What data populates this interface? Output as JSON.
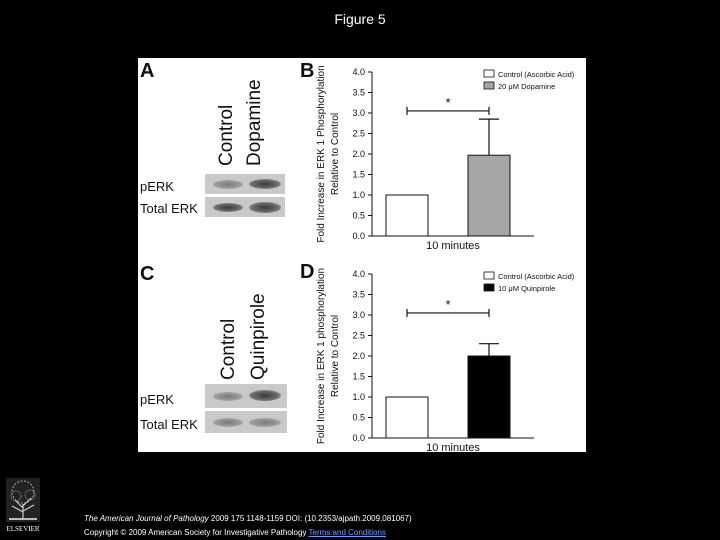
{
  "slide": {
    "title": "Figure 5"
  },
  "panels": {
    "A": {
      "letter": "A",
      "lanes": [
        "Control",
        "Dopamine"
      ],
      "rows": [
        "pERK",
        "Total ERK"
      ]
    },
    "B": {
      "letter": "B",
      "ylabel_line1": "Fold Increase in ERK 1 Phosphorylation",
      "ylabel_line2": "Relative to Control",
      "xlabel": "10 minutes",
      "legend": [
        "Control (Ascorbic Acid)",
        "20 μM Dopamine"
      ],
      "significance": "*"
    },
    "C": {
      "letter": "C",
      "lanes": [
        "Control",
        "Quinpirole"
      ],
      "rows": [
        "pERK",
        "Total ERK"
      ]
    },
    "D": {
      "letter": "D",
      "ylabel_line1": "Fold Increase in ERK 1 phosphorylation",
      "ylabel_line2": "Relative to Control",
      "xlabel": "10 minutes",
      "legend": [
        "Control (Ascorbic Acid)",
        "10 μM Quinpirole"
      ],
      "significance": "*"
    }
  },
  "chart_data": [
    {
      "type": "bar",
      "panel": "B",
      "categories": [
        "Control (Ascorbic Acid)",
        "20 μM Dopamine"
      ],
      "values": [
        1.0,
        1.97
      ],
      "errors": [
        0,
        0.88
      ],
      "colors": [
        "#ffffff",
        "#a6a6a6"
      ],
      "ylim": [
        0,
        4.0
      ],
      "yticks": [
        "0.0",
        "0.5",
        "1.0",
        "1.5",
        "2.0",
        "2.5",
        "3.0",
        "3.5",
        "4.0"
      ],
      "xlabel": "10 minutes",
      "ylabel": "Fold Increase in ERK 1 Phosphorylation Relative to Control",
      "legend_position": "top-right"
    },
    {
      "type": "bar",
      "panel": "D",
      "categories": [
        "Control (Ascorbic Acid)",
        "10 μM Quinpirole"
      ],
      "values": [
        1.0,
        2.0
      ],
      "errors": [
        0,
        0.3
      ],
      "colors": [
        "#ffffff",
        "#000000"
      ],
      "ylim": [
        0,
        4.0
      ],
      "yticks": [
        "0.0",
        "0.5",
        "1.0",
        "1.5",
        "2.0",
        "2.5",
        "3.0",
        "3.5",
        "4.0"
      ],
      "xlabel": "10 minutes",
      "ylabel": "Fold Increase in ERK 1 phosphorylation Relative to Control",
      "legend_position": "top-right"
    }
  ],
  "footer": {
    "journal": "The American Journal of Pathology",
    "citation": " 2009 175 1148-1159 DOI: (10.2353/ajpath.2009.081067)",
    "copyright": "Copyright © 2009 American Society for Investigative Pathology ",
    "terms": "Terms and Conditions"
  },
  "logo": {
    "text": "ELSEVIER"
  }
}
